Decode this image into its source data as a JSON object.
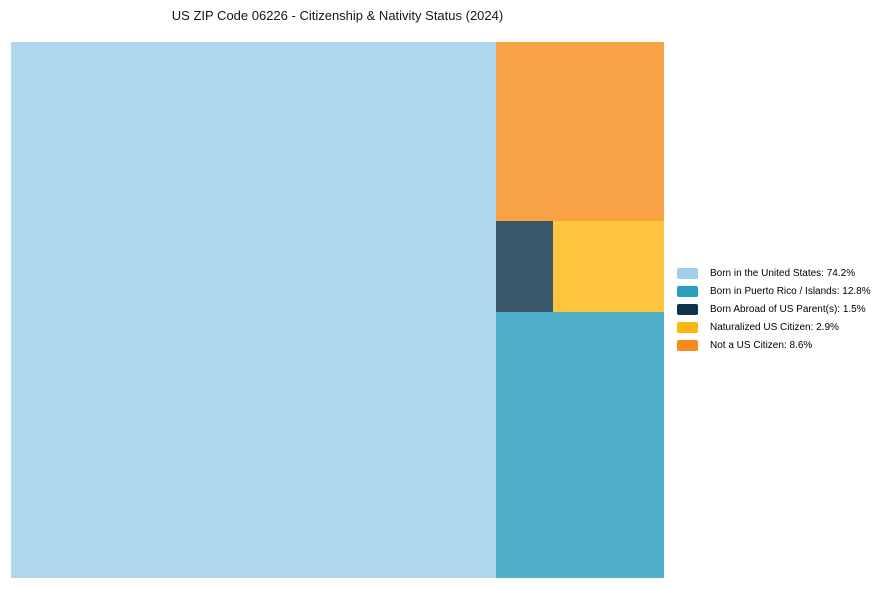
{
  "page": {
    "background": "#ffffff",
    "title_text_color": "#161616",
    "legend_text_color": "#000000"
  },
  "chart_data": {
    "type": "treemap",
    "title": "US ZIP Code 06226 - Citizenship & Nativity Status (2024)",
    "unit": "%",
    "total": 100,
    "legend_position": "right-center",
    "grid": false,
    "categories": [
      "Born in the United States",
      "Born in Puerto Rico / Islands",
      "Born Abroad of US Parent(s)",
      "Naturalized US Citizen",
      "Not a US Citizen"
    ],
    "values": [
      74.2,
      12.8,
      1.5,
      2.9,
      8.6
    ],
    "items": [
      {
        "id": "born-in-us",
        "label": "Born in the United States",
        "value": 74.2,
        "color": "#9FD0E8",
        "legend_text": "Born in the United States: 74.2%"
      },
      {
        "id": "born-in-pr-islands",
        "label": "Born in Puerto Rico / Islands",
        "value": 12.8,
        "color": "#2A9EBD",
        "legend_text": "Born in Puerto Rico / Islands: 12.8%"
      },
      {
        "id": "born-abroad-us-parents",
        "label": "Born Abroad of US Parent(s)",
        "value": 1.5,
        "color": "#0D344A",
        "legend_text": "Born Abroad of US Parent(s): 1.5%"
      },
      {
        "id": "naturalized-us-citizen",
        "label": "Naturalized US Citizen",
        "value": 2.9,
        "color": "#FDB713",
        "legend_text": "Naturalized US Citizen: 2.9%"
      },
      {
        "id": "not-us-citizen",
        "label": "Not a US Citizen",
        "value": 8.6,
        "color": "#F78C1C",
        "legend_text": "Not a US Citizen: 8.6%"
      }
    ]
  }
}
